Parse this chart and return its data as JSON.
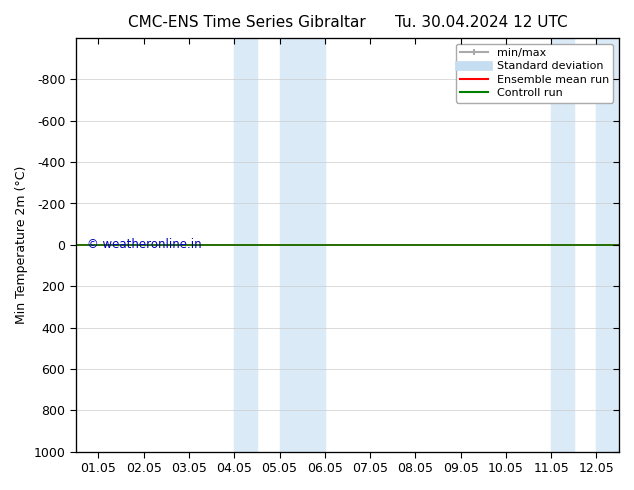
{
  "title": "CMC-ENS Time Series Gibraltar",
  "title_right": "Tu. 30.04.2024 12 UTC",
  "ylabel": "Min Temperature 2m (°C)",
  "xlabel_ticks": [
    "01.05",
    "02.05",
    "03.05",
    "04.05",
    "05.05",
    "06.05",
    "07.05",
    "08.05",
    "09.05",
    "10.05",
    "11.05",
    "12.05"
  ],
  "ylim_top": -1000,
  "ylim_bottom": 1000,
  "yticks": [
    -800,
    -600,
    -400,
    -200,
    0,
    200,
    400,
    600,
    800,
    1000
  ],
  "bg_color": "#ffffff",
  "plot_bg_color": "#ffffff",
  "shaded_bands": [
    {
      "x_start": 4.0,
      "x_end": 4.5,
      "color": "#daeaf7"
    },
    {
      "x_start": 5.0,
      "x_end": 6.0,
      "color": "#daeaf7"
    },
    {
      "x_start": 11.0,
      "x_end": 11.5,
      "color": "#daeaf7"
    },
    {
      "x_start": 12.0,
      "x_end": 12.5,
      "color": "#daeaf7"
    }
  ],
  "control_run_y": 0,
  "control_run_color": "#008000",
  "ensemble_mean_color": "#ff0000",
  "watermark": "© weatheronline.in",
  "watermark_color": "#0000bb",
  "legend_items": [
    {
      "label": "min/max",
      "color": "#aaaaaa",
      "lw": 1.5
    },
    {
      "label": "Standard deviation",
      "color": "#c5ddf0",
      "lw": 7
    },
    {
      "label": "Ensemble mean run",
      "color": "#ff0000",
      "lw": 1.5
    },
    {
      "label": "Controll run",
      "color": "#008000",
      "lw": 1.5
    }
  ],
  "grid_color": "#cccccc",
  "xlim": [
    0.5,
    12.5
  ],
  "x_positions": [
    1,
    2,
    3,
    4,
    5,
    6,
    7,
    8,
    9,
    10,
    11,
    12
  ]
}
